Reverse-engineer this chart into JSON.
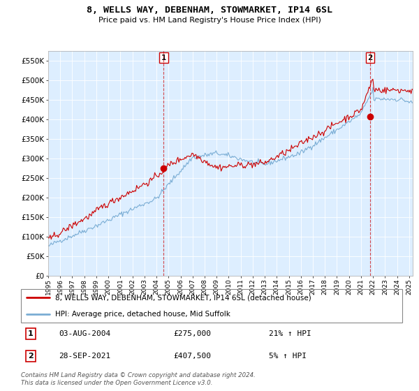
{
  "title": "8, WELLS WAY, DEBENHAM, STOWMARKET, IP14 6SL",
  "subtitle": "Price paid vs. HM Land Registry's House Price Index (HPI)",
  "legend_line1": "8, WELLS WAY, DEBENHAM, STOWMARKET, IP14 6SL (detached house)",
  "legend_line2": "HPI: Average price, detached house, Mid Suffolk",
  "annotation1_label": "1",
  "annotation1_date": "03-AUG-2004",
  "annotation1_price": "£275,000",
  "annotation1_hpi": "21% ↑ HPI",
  "annotation2_label": "2",
  "annotation2_date": "28-SEP-2021",
  "annotation2_price": "£407,500",
  "annotation2_hpi": "5% ↑ HPI",
  "footnote": "Contains HM Land Registry data © Crown copyright and database right 2024.\nThis data is licensed under the Open Government Licence v3.0.",
  "price_color": "#cc0000",
  "hpi_color": "#7aadd4",
  "bg_color": "#ddeeff",
  "annotation_color": "#cc0000",
  "ylim": [
    0,
    575000
  ],
  "yticks": [
    0,
    50000,
    100000,
    150000,
    200000,
    250000,
    300000,
    350000,
    400000,
    450000,
    500000,
    550000
  ],
  "ytick_labels": [
    "£0",
    "£50K",
    "£100K",
    "£150K",
    "£200K",
    "£250K",
    "£300K",
    "£350K",
    "£400K",
    "£450K",
    "£500K",
    "£550K"
  ],
  "ann1_x_year": 2004.6,
  "ann1_y": 275000,
  "ann2_x_year": 2021.75,
  "ann2_y": 407500,
  "xlim_start": 1995,
  "xlim_end": 2025.3
}
